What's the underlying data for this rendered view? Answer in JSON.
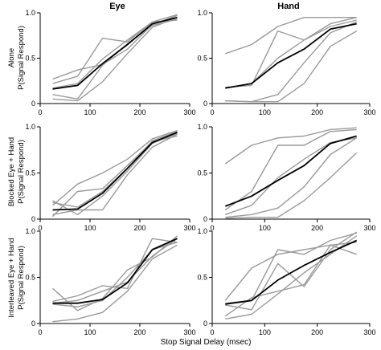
{
  "figure": {
    "col_titles": [
      "Eye",
      "Hand"
    ],
    "row_labels": [
      [
        "Alone",
        "P(Signal Respond)"
      ],
      [
        "Blocked Eye + Hand",
        "P(Signal Respond)"
      ],
      [
        "Interleaved Eye + Hand",
        "P(Signal Respond)"
      ]
    ],
    "xlabel": "Stop Signal Delay (msec)",
    "colors": {
      "individual": "#9a9a9a",
      "mean": "#000000",
      "axis": "#000000"
    }
  },
  "chart_data": [
    {
      "type": "line",
      "row": 0,
      "col": 0,
      "title": "Eye",
      "ylabel": "P(Signal Respond)",
      "xlim": [
        0,
        300
      ],
      "ylim": [
        0,
        1.0
      ],
      "xticks": [
        0,
        100,
        200,
        300
      ],
      "yticks": [
        0,
        0.5,
        1.0
      ],
      "series": [
        {
          "role": "subject",
          "x": [
            25,
            75,
            125,
            175,
            225,
            275
          ],
          "y": [
            0.27,
            0.37,
            0.43,
            0.6,
            0.87,
            0.97
          ]
        },
        {
          "role": "subject",
          "x": [
            25,
            75,
            125,
            175,
            225,
            275
          ],
          "y": [
            0.22,
            0.3,
            0.72,
            0.68,
            0.9,
            0.98
          ]
        },
        {
          "role": "subject",
          "x": [
            25,
            75,
            125,
            175,
            225,
            275
          ],
          "y": [
            0.1,
            0.05,
            0.42,
            0.66,
            0.86,
            0.93
          ]
        },
        {
          "role": "subject",
          "x": [
            25,
            75,
            125,
            175,
            225,
            275
          ],
          "y": [
            0.05,
            0.03,
            0.24,
            0.55,
            0.84,
            0.95
          ]
        },
        {
          "role": "subject",
          "x": [
            25,
            75,
            125,
            175,
            225,
            275
          ],
          "y": [
            0.17,
            0.22,
            0.49,
            0.7,
            0.9,
            0.92
          ]
        },
        {
          "role": "mean",
          "x": [
            25,
            75,
            125,
            175,
            225,
            275
          ],
          "y": [
            0.16,
            0.2,
            0.44,
            0.65,
            0.88,
            0.95
          ]
        }
      ]
    },
    {
      "type": "line",
      "row": 0,
      "col": 1,
      "title": "Hand",
      "xlim": [
        0,
        300
      ],
      "ylim": [
        0,
        1.0
      ],
      "xticks": [
        0,
        100,
        200,
        300
      ],
      "yticks": [
        0,
        0.5,
        1.0
      ],
      "series": [
        {
          "role": "subject",
          "x": [
            25,
            75,
            125,
            175,
            225,
            275
          ],
          "y": [
            0.55,
            0.65,
            0.85,
            0.95,
            0.95,
            0.95
          ]
        },
        {
          "role": "subject",
          "x": [
            25,
            75,
            125,
            175,
            225,
            275
          ],
          "y": [
            0.18,
            0.2,
            0.8,
            0.7,
            0.88,
            0.95
          ]
        },
        {
          "role": "subject",
          "x": [
            25,
            75,
            125,
            175,
            225,
            275
          ],
          "y": [
            0.17,
            0.22,
            0.5,
            0.7,
            0.85,
            0.92
          ]
        },
        {
          "role": "subject",
          "x": [
            25,
            75,
            125,
            175,
            225,
            275
          ],
          "y": [
            0.03,
            0.02,
            0.1,
            0.45,
            0.78,
            0.9
          ]
        },
        {
          "role": "subject",
          "x": [
            25,
            75,
            125,
            175,
            225,
            275
          ],
          "y": [
            0.03,
            0.02,
            0.02,
            0.22,
            0.63,
            0.8
          ]
        },
        {
          "role": "mean",
          "x": [
            25,
            75,
            125,
            175,
            225,
            275
          ],
          "y": [
            0.17,
            0.22,
            0.45,
            0.6,
            0.82,
            0.88
          ]
        }
      ]
    },
    {
      "type": "line",
      "row": 1,
      "col": 0,
      "ylabel": "P(Signal Respond)",
      "xlim": [
        0,
        300
      ],
      "ylim": [
        0,
        1.0
      ],
      "xticks": [
        0,
        100,
        200,
        300
      ],
      "yticks": [
        0,
        0.5,
        1.0
      ],
      "series": [
        {
          "role": "subject",
          "x": [
            25,
            75,
            125,
            175,
            225,
            275
          ],
          "y": [
            0.15,
            0.38,
            0.5,
            0.65,
            0.87,
            0.96
          ]
        },
        {
          "role": "subject",
          "x": [
            25,
            75,
            125,
            175,
            225,
            275
          ],
          "y": [
            0.18,
            0.13,
            0.3,
            0.55,
            0.85,
            0.95
          ]
        },
        {
          "role": "subject",
          "x": [
            25,
            75,
            125,
            175,
            225,
            275
          ],
          "y": [
            0.2,
            0.05,
            0.25,
            0.52,
            0.82,
            0.93
          ]
        },
        {
          "role": "subject",
          "x": [
            25,
            75,
            125,
            175,
            225,
            275
          ],
          "y": [
            0.05,
            0.1,
            0.1,
            0.48,
            0.78,
            0.92
          ]
        },
        {
          "role": "subject",
          "x": [
            25,
            75,
            125,
            175,
            225,
            275
          ],
          "y": [
            0.03,
            0.3,
            0.33,
            0.58,
            0.84,
            0.9
          ]
        },
        {
          "role": "mean",
          "x": [
            25,
            75,
            125,
            175,
            225,
            275
          ],
          "y": [
            0.1,
            0.11,
            0.28,
            0.55,
            0.83,
            0.94
          ]
        }
      ]
    },
    {
      "type": "line",
      "row": 1,
      "col": 1,
      "xlim": [
        0,
        300
      ],
      "ylim": [
        0,
        1.0
      ],
      "xticks": [
        0,
        100,
        200,
        300
      ],
      "yticks": [
        0,
        0.5,
        1.0
      ],
      "series": [
        {
          "role": "subject",
          "x": [
            25,
            75,
            125,
            175,
            225,
            275
          ],
          "y": [
            0.6,
            0.8,
            0.88,
            0.9,
            0.97,
            0.99
          ]
        },
        {
          "role": "subject",
          "x": [
            25,
            75,
            125,
            175,
            225,
            275
          ],
          "y": [
            0.1,
            0.3,
            0.8,
            0.8,
            0.95,
            0.97
          ]
        },
        {
          "role": "subject",
          "x": [
            25,
            75,
            125,
            175,
            225,
            275
          ],
          "y": [
            0.05,
            0.15,
            0.45,
            0.65,
            0.83,
            0.88
          ]
        },
        {
          "role": "subject",
          "x": [
            25,
            75,
            125,
            175,
            225,
            275
          ],
          "y": [
            0.02,
            0.05,
            0.12,
            0.35,
            0.7,
            0.88
          ]
        },
        {
          "role": "subject",
          "x": [
            25,
            75,
            125,
            175,
            225,
            275
          ],
          "y": [
            0.01,
            0.02,
            0.02,
            0.2,
            0.45,
            0.72
          ]
        },
        {
          "role": "mean",
          "x": [
            25,
            75,
            125,
            175,
            225,
            275
          ],
          "y": [
            0.14,
            0.25,
            0.42,
            0.58,
            0.82,
            0.9
          ]
        }
      ]
    },
    {
      "type": "line",
      "row": 2,
      "col": 0,
      "ylabel": "P(Signal Respond)",
      "xlim": [
        0,
        300
      ],
      "ylim": [
        0,
        1.0
      ],
      "xticks": [
        0,
        100,
        200,
        300
      ],
      "yticks": [
        0,
        0.5,
        1.0
      ],
      "series": [
        {
          "role": "subject",
          "x": [
            25,
            75,
            125,
            175,
            225,
            275
          ],
          "y": [
            0.38,
            0.14,
            0.27,
            0.58,
            0.72,
            0.95
          ]
        },
        {
          "role": "subject",
          "x": [
            25,
            75,
            125,
            175,
            225,
            275
          ],
          "y": [
            0.24,
            0.3,
            0.41,
            0.38,
            0.92,
            0.88
          ]
        },
        {
          "role": "subject",
          "x": [
            25,
            75,
            125,
            175,
            225,
            275
          ],
          "y": [
            0.22,
            0.25,
            0.35,
            0.45,
            0.73,
            0.92
          ]
        },
        {
          "role": "subject",
          "x": [
            25,
            75,
            125,
            175,
            225,
            275
          ],
          "y": [
            0.02,
            0.05,
            0.12,
            0.35,
            0.7,
            0.85
          ]
        },
        {
          "role": "subject",
          "x": [
            25,
            75,
            125,
            175,
            225,
            275
          ],
          "y": [
            0.21,
            0.18,
            0.25,
            0.5,
            0.8,
            0.88
          ]
        },
        {
          "role": "mean",
          "x": [
            25,
            75,
            125,
            175,
            225,
            275
          ],
          "y": [
            0.22,
            0.22,
            0.26,
            0.44,
            0.8,
            0.92
          ]
        }
      ]
    },
    {
      "type": "line",
      "row": 2,
      "col": 1,
      "xlim": [
        0,
        300
      ],
      "ylim": [
        0,
        1.0
      ],
      "xticks": [
        0,
        100,
        200,
        300
      ],
      "yticks": [
        0,
        0.5,
        1.0
      ],
      "series": [
        {
          "role": "subject",
          "x": [
            25,
            75,
            125,
            175,
            225,
            275
          ],
          "y": [
            0.25,
            0.6,
            0.75,
            0.8,
            0.85,
            0.88
          ]
        },
        {
          "role": "subject",
          "x": [
            25,
            75,
            125,
            175,
            225,
            275
          ],
          "y": [
            0.22,
            0.25,
            0.8,
            0.75,
            0.9,
            0.98
          ]
        },
        {
          "role": "subject",
          "x": [
            25,
            75,
            125,
            175,
            225,
            275
          ],
          "y": [
            0.2,
            0.15,
            0.65,
            0.4,
            0.8,
            0.99
          ]
        },
        {
          "role": "subject",
          "x": [
            25,
            75,
            125,
            175,
            225,
            275
          ],
          "y": [
            0.05,
            0.1,
            0.32,
            0.55,
            0.75,
            0.95
          ]
        },
        {
          "role": "subject",
          "x": [
            25,
            75,
            125,
            175,
            225,
            275
          ],
          "y": [
            0.08,
            0.28,
            0.35,
            0.42,
            0.85,
            0.75
          ]
        },
        {
          "role": "mean",
          "x": [
            25,
            75,
            125,
            175,
            225,
            275
          ],
          "y": [
            0.21,
            0.25,
            0.47,
            0.63,
            0.77,
            0.9
          ]
        }
      ]
    }
  ]
}
